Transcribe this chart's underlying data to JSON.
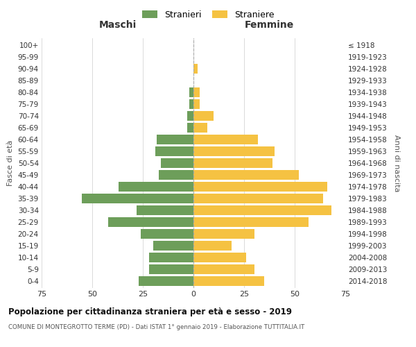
{
  "age_groups": [
    "0-4",
    "5-9",
    "10-14",
    "15-19",
    "20-24",
    "25-29",
    "30-34",
    "35-39",
    "40-44",
    "45-49",
    "50-54",
    "55-59",
    "60-64",
    "65-69",
    "70-74",
    "75-79",
    "80-84",
    "85-89",
    "90-94",
    "95-99",
    "100+"
  ],
  "birth_years": [
    "2014-2018",
    "2009-2013",
    "2004-2008",
    "1999-2003",
    "1994-1998",
    "1989-1993",
    "1984-1988",
    "1979-1983",
    "1974-1978",
    "1969-1973",
    "1964-1968",
    "1959-1963",
    "1954-1958",
    "1949-1953",
    "1944-1948",
    "1939-1943",
    "1934-1938",
    "1929-1933",
    "1924-1928",
    "1919-1923",
    "≤ 1918"
  ],
  "males": [
    27,
    22,
    22,
    20,
    26,
    42,
    28,
    55,
    37,
    17,
    16,
    19,
    18,
    3,
    3,
    2,
    2,
    0,
    0,
    0,
    0
  ],
  "females": [
    35,
    30,
    26,
    19,
    30,
    57,
    68,
    64,
    66,
    52,
    39,
    40,
    32,
    7,
    10,
    3,
    3,
    0,
    2,
    0,
    0
  ],
  "male_color": "#6d9e5a",
  "female_color": "#f5c242",
  "xlim": 75,
  "xlabel_left": "Maschi",
  "xlabel_right": "Femmine",
  "ylabel_left": "Fasce di età",
  "ylabel_right": "Anni di nascita",
  "legend_male": "Stranieri",
  "legend_female": "Straniere",
  "title": "Popolazione per cittadinanza straniera per età e sesso - 2019",
  "subtitle": "COMUNE DI MONTEGROTTO TERME (PD) - Dati ISTAT 1° gennaio 2019 - Elaborazione TUTTITALIA.IT",
  "bg_color": "#ffffff",
  "grid_color": "#cccccc",
  "bar_height": 0.85
}
